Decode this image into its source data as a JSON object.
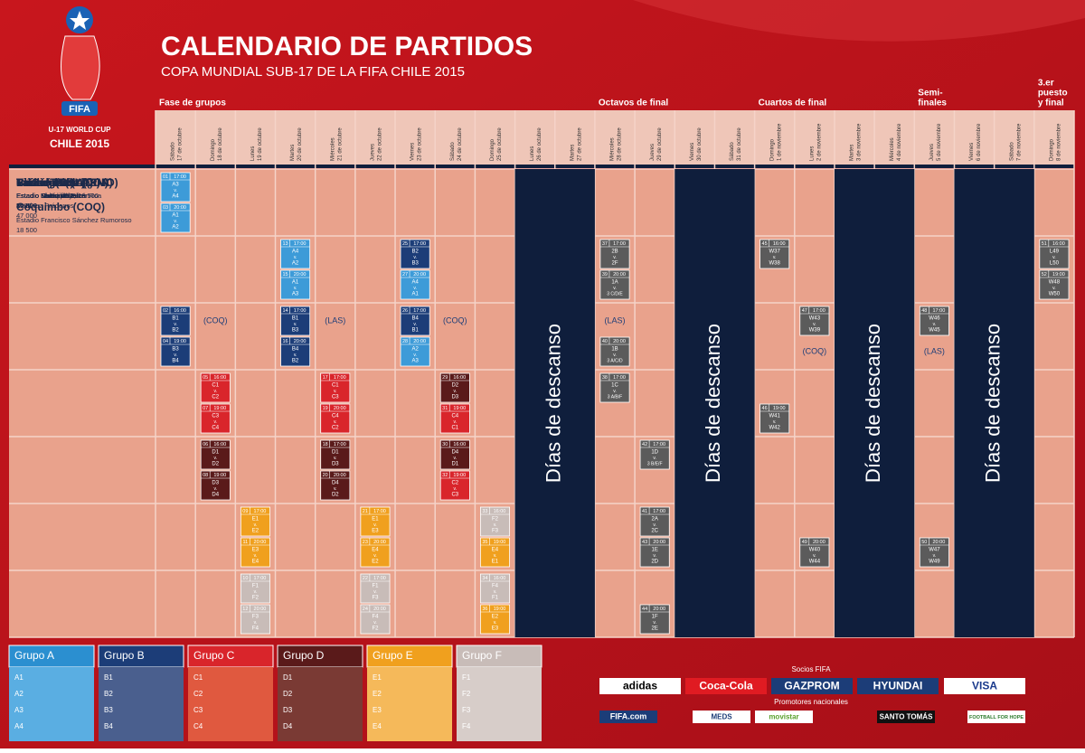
{
  "header": {
    "title": "CALENDARIO DE PARTIDOS",
    "subtitle": "COPA MUNDIAL SUB-17 DE LA FIFA CHILE 2015"
  },
  "logo": {
    "fifa": "FIFA",
    "line1": "U-17 WORLD CUP",
    "line2": "CHILE 2015"
  },
  "stages": [
    {
      "label": "Fase de grupos",
      "col": 0
    },
    {
      "label": "Octavos de final",
      "col": 11
    },
    {
      "label": "Cuartos de final",
      "col": 15
    },
    {
      "label": "Semi-",
      "label2": "finales",
      "col": 19
    },
    {
      "label": "3.er",
      "label2": "puesto",
      "label3": "y final",
      "col": 22
    }
  ],
  "days": [
    [
      "Sábado",
      "17 de octubre"
    ],
    [
      "Domingo",
      "18 de octubre"
    ],
    [
      "Lunes",
      "19 de octubre"
    ],
    [
      "Martes",
      "20 de octubre"
    ],
    [
      "Miércoles",
      "21 de octubre"
    ],
    [
      "Jueves",
      "22 de octubre"
    ],
    [
      "Viernes",
      "23 de octubre"
    ],
    [
      "Sábado",
      "24 de octubre"
    ],
    [
      "Domingo",
      "25 de octubre"
    ],
    [
      "Lunes",
      "26 de octubre"
    ],
    [
      "Martes",
      "27 de octubre"
    ],
    [
      "Miércoles",
      "28 de octubre"
    ],
    [
      "Jueves",
      "29 de octubre"
    ],
    [
      "Viernes",
      "30 de octubre"
    ],
    [
      "Sábado",
      "31 de octubre"
    ],
    [
      "Domingo",
      "1 de noviembre"
    ],
    [
      "Lunes",
      "2 de noviembre"
    ],
    [
      "Martes",
      "3 de noviembre"
    ],
    [
      "Miércoles",
      "4 de noviembre"
    ],
    [
      "Jueves",
      "5 de noviembre"
    ],
    [
      "Viernes",
      "6 de noviembre"
    ],
    [
      "Sábado",
      "7 de noviembre"
    ],
    [
      "Domingo",
      "8 de noviembre"
    ]
  ],
  "rest": {
    "label": "Días de descanso",
    "cols": [
      9,
      13,
      17,
      20
    ]
  },
  "venues": [
    {
      "entries": [
        {
          "name": "Santiago (SAT)",
          "stadium": [
            "Estadio Nacional Julio",
            "Martínez Prádanos"
          ],
          "capacity": "47 000"
        }
      ]
    },
    {
      "entries": [
        {
          "name": "Viña del Mar (VIN)",
          "stadium": [
            "Estadio Sausalito"
          ],
          "capacity": "24 000"
        }
      ]
    },
    {
      "entries": [
        {
          "name": "La Serena (LAS)",
          "stadium": [
            "Estadio La Portada; 18 500"
          ]
        },
        {
          "name": "Coquimbo (COQ)",
          "stadium": [
            "Estadio Francisco Sánchez Rumoroso"
          ],
          "capacity": "18 500"
        }
      ]
    },
    {
      "entries": [
        {
          "name": "Chillán (CHL)",
          "stadium": [
            "Estadio Nelson Oyarzún"
          ],
          "capacity": "12 000"
        }
      ]
    },
    {
      "entries": [
        {
          "name": "Talca (TAL)",
          "stadium": [
            "Estadio Fiscal de Talca"
          ],
          "capacity": "8000"
        }
      ]
    },
    {
      "entries": [
        {
          "name": "Concepción (CON)",
          "stadium": [
            "Estadio Municipal Ester Roa"
          ],
          "capacity": "30 000"
        }
      ]
    },
    {
      "entries": [
        {
          "name": "Puerto Montt (PMO)",
          "stadium": [
            "Estadio Chinquihue"
          ],
          "capacity": "10 000"
        }
      ]
    }
  ],
  "versus": "v.",
  "matches": [
    {
      "r": 0,
      "c": 0,
      "s": 0,
      "n": "01",
      "t": "17:00",
      "h": "A3",
      "a": "A4",
      "color": "#3d9bd8"
    },
    {
      "r": 0,
      "c": 0,
      "s": 1,
      "n": "03",
      "t": "20:00",
      "h": "A1",
      "a": "A2",
      "color": "#3d9bd8"
    },
    {
      "r": 2,
      "c": 0,
      "s": 0,
      "n": "02",
      "t": "16:00",
      "h": "B1",
      "a": "B2",
      "color": "#1c3d78"
    },
    {
      "r": 2,
      "c": 0,
      "s": 1,
      "n": "04",
      "t": "19:00",
      "h": "B3",
      "a": "B4",
      "color": "#1c3d78"
    },
    {
      "r": 3,
      "c": 1,
      "s": 0,
      "n": "05",
      "t": "16:00",
      "h": "C1",
      "a": "C2",
      "color": "#d9252b"
    },
    {
      "r": 3,
      "c": 1,
      "s": 1,
      "n": "07",
      "t": "19:00",
      "h": "C3",
      "a": "C4",
      "color": "#d9252b"
    },
    {
      "r": 4,
      "c": 1,
      "s": 0,
      "n": "06",
      "t": "16:00",
      "h": "D1",
      "a": "D2",
      "color": "#5a1a1a"
    },
    {
      "r": 4,
      "c": 1,
      "s": 1,
      "n": "08",
      "t": "19:00",
      "h": "D3",
      "a": "D4",
      "color": "#5a1a1a"
    },
    {
      "r": 5,
      "c": 2,
      "s": 0,
      "n": "09",
      "t": "17:00",
      "h": "E1",
      "a": "E2",
      "color": "#f0a01e"
    },
    {
      "r": 5,
      "c": 2,
      "s": 1,
      "n": "11",
      "t": "20:00",
      "h": "E3",
      "a": "E4",
      "color": "#f0a01e"
    },
    {
      "r": 6,
      "c": 2,
      "s": 0,
      "n": "10",
      "t": "17:00",
      "h": "F1",
      "a": "F2",
      "color": "#c8bcb8"
    },
    {
      "r": 6,
      "c": 2,
      "s": 1,
      "n": "12",
      "t": "20:00",
      "h": "F3",
      "a": "F4",
      "color": "#c8bcb8"
    },
    {
      "r": 1,
      "c": 3,
      "s": 0,
      "n": "13",
      "t": "17:00",
      "h": "A4",
      "a": "A2",
      "color": "#3d9bd8"
    },
    {
      "r": 1,
      "c": 3,
      "s": 1,
      "n": "15",
      "t": "20:00",
      "h": "A1",
      "a": "A3",
      "color": "#3d9bd8"
    },
    {
      "r": 2,
      "c": 3,
      "s": 0,
      "n": "14",
      "t": "17:00",
      "h": "B1",
      "a": "B3",
      "color": "#1c3d78"
    },
    {
      "r": 2,
      "c": 3,
      "s": 1,
      "n": "16",
      "t": "20:00",
      "h": "B4",
      "a": "B2",
      "color": "#1c3d78"
    },
    {
      "r": 3,
      "c": 4,
      "s": 0,
      "n": "17",
      "t": "17:00",
      "h": "C1",
      "a": "C3",
      "color": "#d9252b"
    },
    {
      "r": 3,
      "c": 4,
      "s": 1,
      "n": "19",
      "t": "20:00",
      "h": "C4",
      "a": "C2",
      "color": "#d9252b"
    },
    {
      "r": 4,
      "c": 4,
      "s": 0,
      "n": "18",
      "t": "17:00",
      "h": "D1",
      "a": "D3",
      "color": "#5a1a1a"
    },
    {
      "r": 4,
      "c": 4,
      "s": 1,
      "n": "20",
      "t": "20:00",
      "h": "D4",
      "a": "D2",
      "color": "#5a1a1a"
    },
    {
      "r": 5,
      "c": 5,
      "s": 0,
      "n": "21",
      "t": "17:00",
      "h": "E1",
      "a": "E3",
      "color": "#f0a01e"
    },
    {
      "r": 5,
      "c": 5,
      "s": 1,
      "n": "23",
      "t": "20:00",
      "h": "E4",
      "a": "E2",
      "color": "#f0a01e"
    },
    {
      "r": 6,
      "c": 5,
      "s": 0,
      "n": "22",
      "t": "17:00",
      "h": "F1",
      "a": "F3",
      "color": "#c8bcb8"
    },
    {
      "r": 6,
      "c": 5,
      "s": 1,
      "n": "24",
      "t": "20:00",
      "h": "F4",
      "a": "F2",
      "color": "#c8bcb8"
    },
    {
      "r": 1,
      "c": 6,
      "s": 0,
      "n": "25",
      "t": "17:00",
      "h": "B2",
      "a": "B3",
      "color": "#1c3d78"
    },
    {
      "r": 1,
      "c": 6,
      "s": 1,
      "n": "27",
      "t": "20:00",
      "h": "A4",
      "a": "A1",
      "color": "#3d9bd8"
    },
    {
      "r": 2,
      "c": 6,
      "s": 0,
      "n": "26",
      "t": "17:00",
      "h": "B4",
      "a": "B1",
      "color": "#1c3d78"
    },
    {
      "r": 2,
      "c": 6,
      "s": 1,
      "n": "28",
      "t": "20:00",
      "h": "A2",
      "a": "A3",
      "color": "#3d9bd8"
    },
    {
      "r": 3,
      "c": 7,
      "s": 0,
      "n": "29",
      "t": "16:00",
      "h": "D2",
      "a": "D3",
      "color": "#5a1a1a"
    },
    {
      "r": 3,
      "c": 7,
      "s": 1,
      "n": "31",
      "t": "19:00",
      "h": "C4",
      "a": "C1",
      "color": "#d9252b"
    },
    {
      "r": 4,
      "c": 7,
      "s": 0,
      "n": "30",
      "t": "16:00",
      "h": "D4",
      "a": "D1",
      "color": "#5a1a1a"
    },
    {
      "r": 4,
      "c": 7,
      "s": 1,
      "n": "32",
      "t": "19:00",
      "h": "C2",
      "a": "C3",
      "color": "#d9252b"
    },
    {
      "r": 5,
      "c": 8,
      "s": 0,
      "n": "33",
      "t": "16:00",
      "h": "F2",
      "a": "F3",
      "color": "#c8bcb8"
    },
    {
      "r": 5,
      "c": 8,
      "s": 1,
      "n": "35",
      "t": "19:00",
      "h": "E4",
      "a": "E1",
      "color": "#f0a01e"
    },
    {
      "r": 6,
      "c": 8,
      "s": 0,
      "n": "34",
      "t": "16:00",
      "h": "F4",
      "a": "F1",
      "color": "#c8bcb8"
    },
    {
      "r": 6,
      "c": 8,
      "s": 1,
      "n": "36",
      "t": "19:00",
      "h": "E2",
      "a": "E3",
      "color": "#f0a01e"
    },
    {
      "r": 1,
      "c": 11,
      "s": 0,
      "n": "37",
      "t": "17:00",
      "h": "2B",
      "a": "2F",
      "color": "#5b5b5b"
    },
    {
      "r": 1,
      "c": 11,
      "s": 1,
      "n": "39",
      "t": "20:00",
      "h": "1A",
      "a": "3 C/D/E",
      "color": "#5b5b5b"
    },
    {
      "r": 2,
      "c": 11,
      "s": 1,
      "n": "40",
      "t": "20:00",
      "h": "1B",
      "a": "3 A/C/D",
      "color": "#5b5b5b"
    },
    {
      "r": 3,
      "c": 11,
      "s": 0,
      "n": "38",
      "t": "17:00",
      "h": "1C",
      "a": "3 A/B/F",
      "color": "#5b5b5b"
    },
    {
      "r": 4,
      "c": 12,
      "s": 0,
      "n": "42",
      "t": "17:00",
      "h": "1D",
      "a": "3 B/E/F",
      "color": "#5b5b5b"
    },
    {
      "r": 5,
      "c": 12,
      "s": 0,
      "n": "41",
      "t": "17:00",
      "h": "2A",
      "a": "2C",
      "color": "#5b5b5b"
    },
    {
      "r": 5,
      "c": 12,
      "s": 1,
      "n": "43",
      "t": "20:00",
      "h": "1E",
      "a": "2D",
      "color": "#5b5b5b"
    },
    {
      "r": 6,
      "c": 12,
      "s": 1,
      "n": "44",
      "t": "20:00",
      "h": "1F",
      "a": "2E",
      "color": "#5b5b5b"
    },
    {
      "r": 1,
      "c": 15,
      "s": 0,
      "n": "45",
      "t": "16:00",
      "h": "W37",
      "a": "W38",
      "color": "#5b5b5b"
    },
    {
      "r": 3,
      "c": 15,
      "s": 1,
      "n": "46",
      "t": "19:00",
      "h": "W41",
      "a": "W42",
      "color": "#5b5b5b"
    },
    {
      "r": 2,
      "c": 16,
      "s": 0,
      "n": "47",
      "t": "17:00",
      "h": "W43",
      "a": "W39",
      "color": "#5b5b5b"
    },
    {
      "r": 5,
      "c": 16,
      "s": 1,
      "n": "49",
      "t": "20:00",
      "h": "W40",
      "a": "W44",
      "color": "#5b5b5b"
    },
    {
      "r": 2,
      "c": 19,
      "s": 0,
      "n": "48",
      "t": "17:00",
      "h": "W46",
      "a": "W45",
      "color": "#5b5b5b"
    },
    {
      "r": 5,
      "c": 19,
      "s": 1,
      "n": "50",
      "t": "20:00",
      "h": "W47",
      "a": "W49",
      "color": "#5b5b5b"
    },
    {
      "r": 1,
      "c": 22,
      "s": 0,
      "n": "51",
      "t": "16:00",
      "h": "L49",
      "a": "L50",
      "color": "#5b5b5b"
    },
    {
      "r": 1,
      "c": 22,
      "s": 1,
      "n": "52",
      "t": "19:00",
      "h": "W48",
      "a": "W50",
      "color": "#5b5b5b"
    }
  ],
  "notes": [
    {
      "r": 2,
      "c": 1,
      "s": 0,
      "text": "(COQ)"
    },
    {
      "r": 2,
      "c": 4,
      "s": 0,
      "text": "(LAS)"
    },
    {
      "r": 2,
      "c": 7,
      "s": 0,
      "text": "(COQ)"
    },
    {
      "r": 2,
      "c": 11,
      "s": 0,
      "text": "(LAS)"
    },
    {
      "r": 2,
      "c": 16,
      "s": 1,
      "text": "(COQ)"
    },
    {
      "r": 2,
      "c": 19,
      "s": 1,
      "text": "(LAS)"
    }
  ],
  "groups": [
    {
      "name": "Grupo A",
      "teams": [
        "A1",
        "A2",
        "A3",
        "A4"
      ],
      "color": "#2b8fd0",
      "body": "#5aaee2"
    },
    {
      "name": "Grupo B",
      "teams": [
        "B1",
        "B2",
        "B3",
        "B4"
      ],
      "color": "#1c3d78",
      "body": "#4a5f8e"
    },
    {
      "name": "Grupo C",
      "teams": [
        "C1",
        "C2",
        "C3",
        "C4"
      ],
      "color": "#d9252b",
      "body": "#e0593f"
    },
    {
      "name": "Grupo D",
      "teams": [
        "D1",
        "D2",
        "D3",
        "D4"
      ],
      "color": "#5a1a1a",
      "body": "#7a3a34"
    },
    {
      "name": "Grupo E",
      "teams": [
        "E1",
        "E2",
        "E3",
        "E4"
      ],
      "color": "#f0a01e",
      "body": "#f5b95a"
    },
    {
      "name": "Grupo F",
      "teams": [
        "F1",
        "F2",
        "F3",
        "F4"
      ],
      "color": "#c8bcb8",
      "body": "#d7cdc9"
    }
  ],
  "sponsors": {
    "partners_label": "Socios FIFA",
    "partners": [
      "adidas",
      "Coca-Cola",
      "GAZPROM",
      "HYUNDAI",
      "VISA"
    ],
    "national_label": "Promotores nacionales",
    "national": [
      "MEDS",
      "movistar",
      "SANTO TOMÁS",
      "FOOTBALL FOR HOPE"
    ],
    "site": "FIFA.com"
  }
}
